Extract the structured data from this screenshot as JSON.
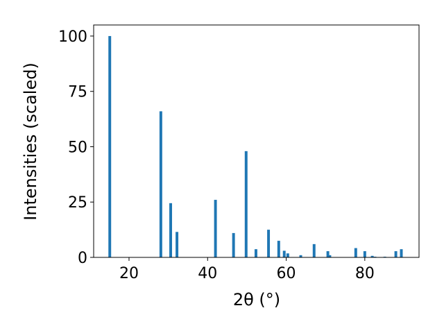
{
  "chart_data": {
    "type": "bar",
    "xlabel": "2θ (°)",
    "ylabel": "Intensities (scaled)",
    "x": [
      15.1,
      28.1,
      30.6,
      32.2,
      42.0,
      46.6,
      49.8,
      52.3,
      55.5,
      58.1,
      59.5,
      60.4,
      63.7,
      67.1,
      70.6,
      71.1,
      77.7,
      80.0,
      81.9,
      82.6,
      85.1,
      87.9,
      89.3
    ],
    "values": [
      100,
      66,
      24.5,
      11.5,
      26,
      11,
      48,
      3.7,
      12.5,
      7.5,
      3,
      1.8,
      1,
      6,
      2.8,
      1,
      4.2,
      2.8,
      0.7,
      0.3,
      0.3,
      2.8,
      3.7
    ],
    "color": "#1f77b4",
    "xlim": [
      11,
      93.8
    ],
    "ylim": [
      0,
      105
    ],
    "xticks": [
      20,
      40,
      60,
      80
    ],
    "yticks": [
      0,
      25,
      50,
      75,
      100
    ]
  }
}
